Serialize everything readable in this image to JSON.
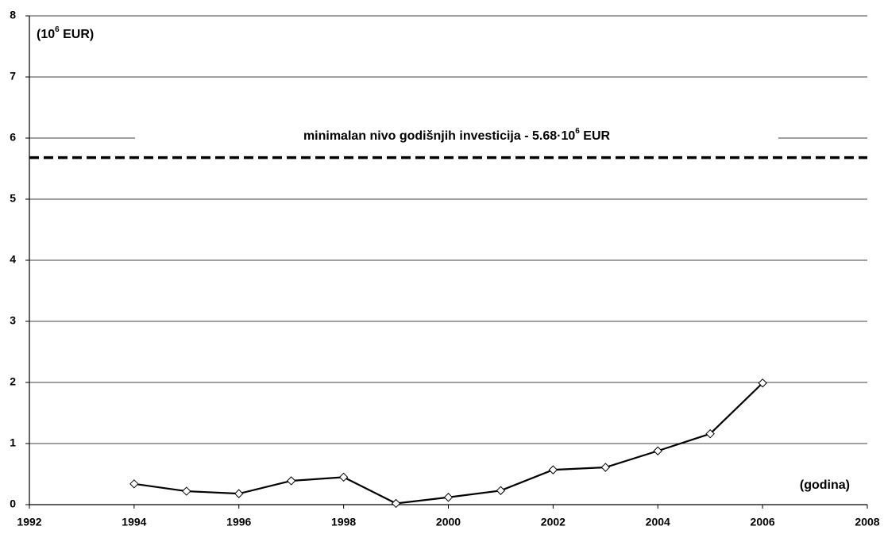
{
  "chart_data": {
    "type": "line",
    "y_unit_label": [
      "(10",
      "6",
      " EUR)"
    ],
    "x_unit_label": "(godina)",
    "annotation": [
      "minimalan nivo godišnjih investicija - 5.68·10",
      "6",
      " EUR"
    ],
    "reference_line": {
      "value": 5.68,
      "color": "#000000",
      "style": "dashed"
    },
    "x": [
      1994,
      1995,
      1996,
      1997,
      1998,
      1999,
      2000,
      2001,
      2002,
      2003,
      2004,
      2005,
      2006
    ],
    "series": [
      {
        "color": "#000000",
        "marker": "diamond",
        "values": [
          0.34,
          0.22,
          0.18,
          0.39,
          0.45,
          0.02,
          0.12,
          0.23,
          0.57,
          0.61,
          0.88,
          1.16,
          1.99
        ]
      }
    ],
    "xlim": [
      1992,
      2008
    ],
    "xticks": [
      1992,
      1994,
      1996,
      1998,
      2000,
      2002,
      2004,
      2006,
      2008
    ],
    "ylim": [
      0,
      8
    ],
    "yticks": [
      0,
      1,
      2,
      3,
      4,
      5,
      6,
      7,
      8
    ],
    "grid": true
  }
}
